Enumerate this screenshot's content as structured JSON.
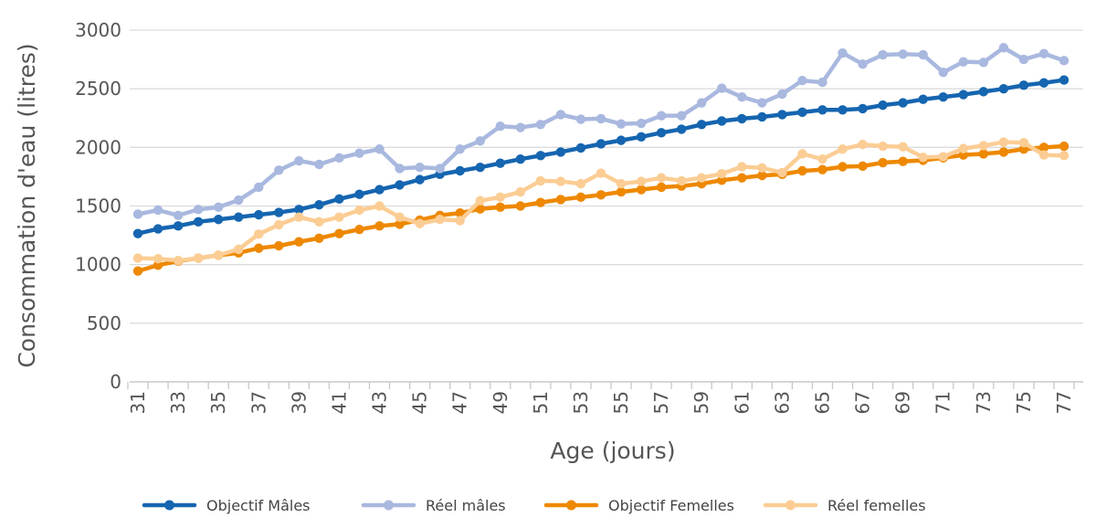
{
  "chart_data": {
    "type": "line",
    "title": "",
    "xlabel": "Age (jours)",
    "ylabel": "Consommation d'eau (litres)",
    "ylim": [
      0,
      3000
    ],
    "yticks": [
      0,
      500,
      1000,
      1500,
      2000,
      2500,
      3000
    ],
    "x": [
      31,
      32,
      33,
      34,
      35,
      36,
      37,
      38,
      39,
      40,
      41,
      42,
      43,
      44,
      45,
      46,
      47,
      48,
      49,
      50,
      51,
      52,
      53,
      54,
      55,
      56,
      57,
      58,
      59,
      60,
      61,
      62,
      63,
      64,
      65,
      66,
      67,
      68,
      69,
      70,
      71,
      72,
      73,
      74,
      75,
      76,
      77
    ],
    "xticks": [
      31,
      33,
      35,
      37,
      39,
      41,
      43,
      45,
      47,
      49,
      51,
      53,
      55,
      57,
      59,
      61,
      63,
      65,
      67,
      69,
      71,
      73,
      75,
      77
    ],
    "grid": true,
    "legend_position": "bottom",
    "series": [
      {
        "name": "Objectif Mâles",
        "color": "#1565b0",
        "values": [
          1265,
          1305,
          1330,
          1365,
          1385,
          1405,
          1425,
          1445,
          1470,
          1510,
          1560,
          1600,
          1640,
          1680,
          1725,
          1770,
          1800,
          1830,
          1865,
          1900,
          1930,
          1960,
          1995,
          2030,
          2060,
          2090,
          2125,
          2155,
          2195,
          2225,
          2245,
          2260,
          2280,
          2300,
          2320,
          2320,
          2330,
          2360,
          2380,
          2410,
          2430,
          2450,
          2475,
          2500,
          2530,
          2550,
          2575
        ]
      },
      {
        "name": "Réel mâles",
        "color": "#a9b8df",
        "values": [
          1430,
          1465,
          1420,
          1470,
          1490,
          1550,
          1660,
          1805,
          1885,
          1855,
          1910,
          1950,
          1985,
          1820,
          1830,
          1820,
          1985,
          2055,
          2180,
          2170,
          2195,
          2280,
          2240,
          2245,
          2200,
          2205,
          2270,
          2270,
          2380,
          2505,
          2430,
          2380,
          2455,
          2570,
          2555,
          2805,
          2710,
          2790,
          2795,
          2790,
          2640,
          2730,
          2725,
          2850,
          2750,
          2800,
          2740
        ]
      },
      {
        "name": "Objectif Femelles",
        "color": "#ee8800",
        "values": [
          945,
          995,
          1030,
          1055,
          1080,
          1100,
          1140,
          1160,
          1195,
          1225,
          1265,
          1300,
          1330,
          1345,
          1380,
          1420,
          1440,
          1475,
          1490,
          1500,
          1530,
          1555,
          1575,
          1595,
          1620,
          1640,
          1660,
          1670,
          1690,
          1720,
          1740,
          1760,
          1770,
          1800,
          1810,
          1835,
          1840,
          1870,
          1880,
          1890,
          1910,
          1935,
          1945,
          1960,
          1985,
          2000,
          2010
        ]
      },
      {
        "name": "Réel femelles",
        "color": "#fbcd94",
        "values": [
          1055,
          1050,
          1035,
          1055,
          1080,
          1130,
          1260,
          1340,
          1405,
          1365,
          1405,
          1465,
          1500,
          1405,
          1350,
          1385,
          1375,
          1545,
          1575,
          1620,
          1715,
          1710,
          1690,
          1780,
          1690,
          1710,
          1740,
          1715,
          1740,
          1775,
          1835,
          1825,
          1785,
          1945,
          1900,
          1985,
          2025,
          2010,
          2005,
          1915,
          1920,
          1990,
          2015,
          2045,
          2040,
          1935,
          1930
        ]
      }
    ]
  }
}
